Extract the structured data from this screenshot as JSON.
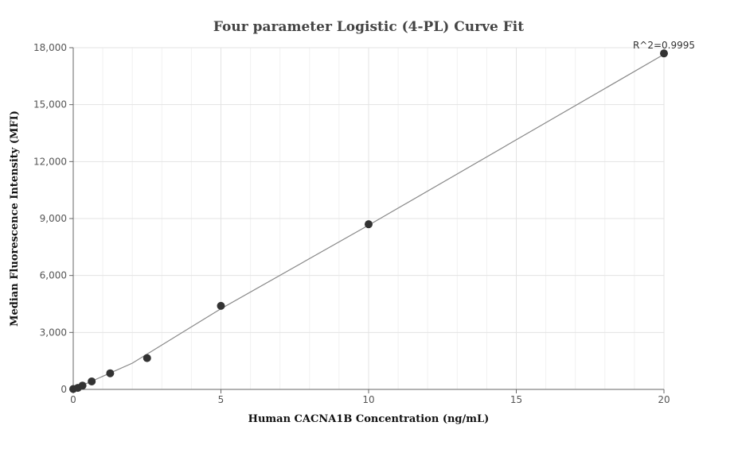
{
  "chart_data": {
    "type": "scatter",
    "title": "Four parameter Logistic (4-PL) Curve Fit",
    "xlabel": "Human CACNA1B Concentration (ng/mL)",
    "ylabel": "Median Fluorescence Intensity (MFI)",
    "xlim": [
      0,
      20
    ],
    "ylim": [
      0,
      18000
    ],
    "x_ticks": [
      0,
      5,
      10,
      15,
      20
    ],
    "x_tick_labels": [
      "0",
      "5",
      "10",
      "15",
      "20"
    ],
    "y_ticks": [
      0,
      3000,
      6000,
      9000,
      12000,
      15000,
      18000
    ],
    "y_tick_labels": [
      "0",
      "3,000",
      "6,000",
      "9,000",
      "12,000",
      "15,000",
      "18,000"
    ],
    "grid": true,
    "legend": "none",
    "annotation": "R^2=0.9995",
    "series": [
      {
        "points": [
          {
            "x": 0,
            "y": 20
          },
          {
            "x": 0.156,
            "y": 80
          },
          {
            "x": 0.3125,
            "y": 200
          },
          {
            "x": 0.625,
            "y": 420
          },
          {
            "x": 1.25,
            "y": 850
          },
          {
            "x": 2.5,
            "y": 1650
          },
          {
            "x": 5,
            "y": 4400
          },
          {
            "x": 10,
            "y": 8700
          },
          {
            "x": 20,
            "y": 17700
          }
        ],
        "color": "#333333"
      },
      {
        "type": "line",
        "points": [
          {
            "x": 0,
            "y": 0
          },
          {
            "x": 2,
            "y": 1380
          },
          {
            "x": 5,
            "y": 4250
          },
          {
            "x": 10,
            "y": 8650
          },
          {
            "x": 15,
            "y": 13150
          },
          {
            "x": 20,
            "y": 17650
          }
        ],
        "color": "#888888"
      }
    ]
  }
}
